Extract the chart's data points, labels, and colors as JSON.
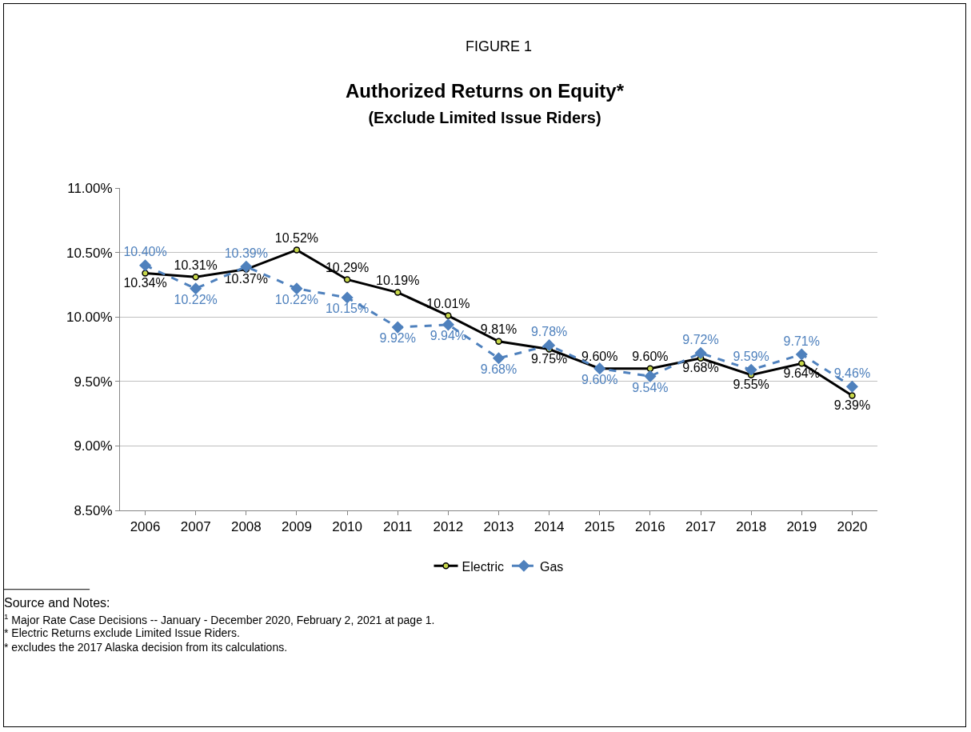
{
  "chart_data": {
    "type": "line",
    "title": "Authorized Returns on Equity*",
    "subtitle": "(Exclude Limited Issue Riders)",
    "categories": [
      "2006",
      "2007",
      "2008",
      "2009",
      "2010",
      "2011",
      "2012",
      "2013",
      "2014",
      "2015",
      "2016",
      "2017",
      "2018",
      "2019",
      "2020"
    ],
    "series": [
      {
        "name": "Electric",
        "color": "#000000",
        "marker": "circle",
        "line_style": "solid",
        "values": [
          10.34,
          10.31,
          10.37,
          10.52,
          10.29,
          10.19,
          10.01,
          9.81,
          9.75,
          9.6,
          9.6,
          9.68,
          9.55,
          9.64,
          9.39
        ],
        "value_labels": [
          "10.34%",
          "10.31%",
          "10.37%",
          "10.52%",
          "10.29%",
          "10.19%",
          "10.01%",
          "9.81%",
          "9.75%",
          "9.60%",
          "9.60%",
          "9.68%",
          "9.55%",
          "9.64%",
          "9.39%"
        ]
      },
      {
        "name": "Gas",
        "color": "#4f81bd",
        "marker": "diamond",
        "line_style": "dashed",
        "values": [
          10.4,
          10.22,
          10.39,
          10.22,
          10.15,
          9.92,
          9.94,
          9.68,
          9.78,
          9.6,
          9.54,
          9.72,
          9.59,
          9.71,
          9.46
        ],
        "value_labels": [
          "10.40%",
          "10.22%",
          "10.39%",
          "10.22%",
          "10.15%",
          "9.92%",
          "9.94%",
          "9.68%",
          "9.78%",
          "9.60%",
          "9.54%",
          "9.72%",
          "9.59%",
          "9.71%",
          "9.46%"
        ]
      }
    ],
    "ylim": [
      8.5,
      11
    ],
    "yticks": [
      {
        "value": 8.5,
        "label": "8.50%"
      },
      {
        "value": 9,
        "label": "9.00%"
      },
      {
        "value": 9.5,
        "label": "9.50%"
      },
      {
        "value": 10,
        "label": "10.00%"
      },
      {
        "value": 10.5,
        "label": "10.50%"
      },
      {
        "value": 11,
        "label": "11.00%"
      }
    ],
    "grid": "y",
    "legend": "bottom",
    "annotations": [
      "FIGURE 1",
      "Source and Notes:",
      "$^{1}$ Major Rate Case Decisions -- January - December 2020, February 2, 2021 at page 1.",
      "* Electric Returns exclude Limited Issue Riders.",
      "* excludes the 2017 Alaska decision from its calculations."
    ]
  }
}
